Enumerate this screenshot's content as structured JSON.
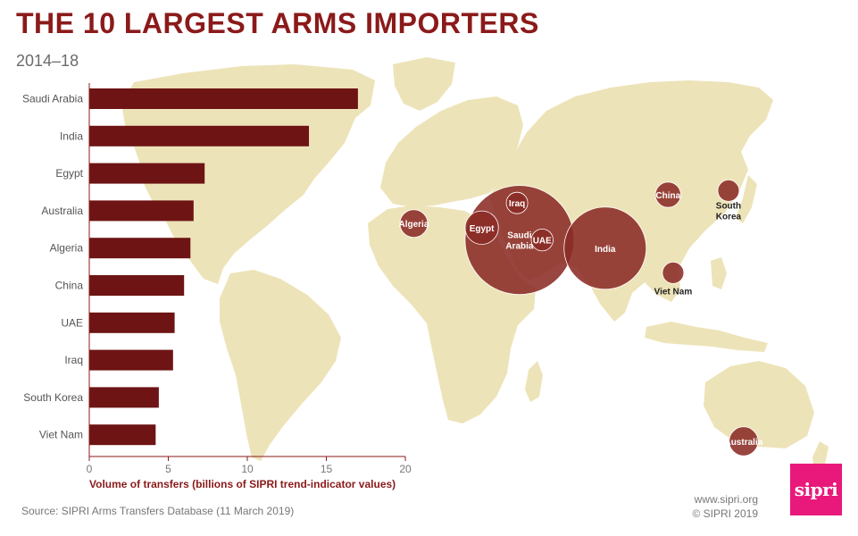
{
  "header": {
    "title": "THE 10 LARGEST ARMS IMPORTERS",
    "subtitle": "2014–18"
  },
  "footer": {
    "source": "Source: SIPRI Arms Transfers Database (11 March 2019)",
    "website": "www.sipri.org",
    "copyright": "© SIPRI 2019",
    "logo_text": "sipri"
  },
  "colors": {
    "bar": "#6e1414",
    "bubble": "#8b2b25",
    "bubble_text": "#ffffff",
    "map_land": "#ede3b8",
    "axis_label": "#8b1a1a",
    "logo": "#e8197a"
  },
  "chart_data": [
    {
      "type": "bar",
      "orientation": "horizontal",
      "categories": [
        "Saudi Arabia",
        "India",
        "Egypt",
        "Australia",
        "Algeria",
        "China",
        "UAE",
        "Iraq",
        "South Korea",
        "Viet Nam"
      ],
      "values": [
        17.0,
        13.9,
        7.3,
        6.6,
        6.4,
        6.0,
        5.4,
        5.3,
        4.4,
        4.2
      ],
      "xlabel": "Volume of transfers (billions of SIPRI trend-indicator values)",
      "xlim": [
        0,
        20
      ],
      "xticks": [
        0,
        5,
        10,
        15,
        20
      ],
      "grid": false
    },
    {
      "type": "scatter",
      "description_type": "bubble map",
      "points": [
        {
          "label": "Saudi Arabia",
          "value": 17.0,
          "lon": 45,
          "lat": 24
        },
        {
          "label": "India",
          "value": 13.9,
          "lon": 79,
          "lat": 22
        },
        {
          "label": "Egypt",
          "value": 7.3,
          "lon": 30,
          "lat": 27
        },
        {
          "label": "Australia",
          "value": 6.6,
          "lon": 134,
          "lat": -25
        },
        {
          "label": "Algeria",
          "value": 6.4,
          "lon": 3,
          "lat": 28
        },
        {
          "label": "China",
          "value": 6.0,
          "lon": 104,
          "lat": 35
        },
        {
          "label": "UAE",
          "value": 5.4,
          "lon": 54,
          "lat": 24
        },
        {
          "label": "Iraq",
          "value": 5.3,
          "lon": 44,
          "lat": 33
        },
        {
          "label": "South Korea",
          "value": 4.4,
          "lon": 128,
          "lat": 36
        },
        {
          "label": "Viet Nam",
          "value": 4.2,
          "lon": 106,
          "lat": 16
        }
      ]
    }
  ]
}
